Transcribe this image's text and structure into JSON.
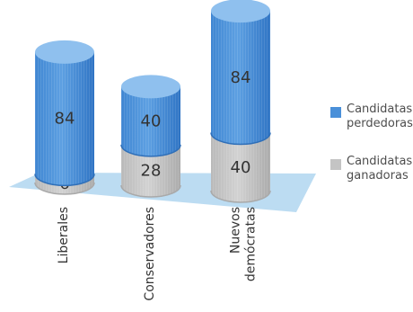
{
  "chart_data": {
    "type": "bar",
    "stacked": true,
    "style": "3d-cylinder",
    "categories": [
      "Liberales",
      "Conservadores",
      "Nuevos demócratas"
    ],
    "category_lines": [
      [
        "Liberales"
      ],
      [
        "Conservadores"
      ],
      [
        "Nuevos",
        "demócratas"
      ]
    ],
    "series": [
      {
        "name": "Candidatas ganadoras",
        "values": [
          6,
          28,
          40
        ],
        "color": "#c4c4c4",
        "shade": "#a9a9a9"
      },
      {
        "name": "Candidatas perdedoras",
        "values": [
          84,
          40,
          84
        ],
        "color": "#4a90d9",
        "shade": "#2f6fb8",
        "top": "#8fc0ee"
      }
    ],
    "floor_color": "#bcdcf2",
    "label_color": "#333333",
    "legend": {
      "placement": "right",
      "items": [
        {
          "lines": [
            "Candidatas",
            "perdedoras"
          ],
          "color": "#4a90d9",
          "icon": "square-swatch-icon"
        },
        {
          "lines": [
            "Candidatas",
            "ganadoras"
          ],
          "color": "#c4c4c4",
          "icon": "square-swatch-icon"
        }
      ]
    }
  }
}
